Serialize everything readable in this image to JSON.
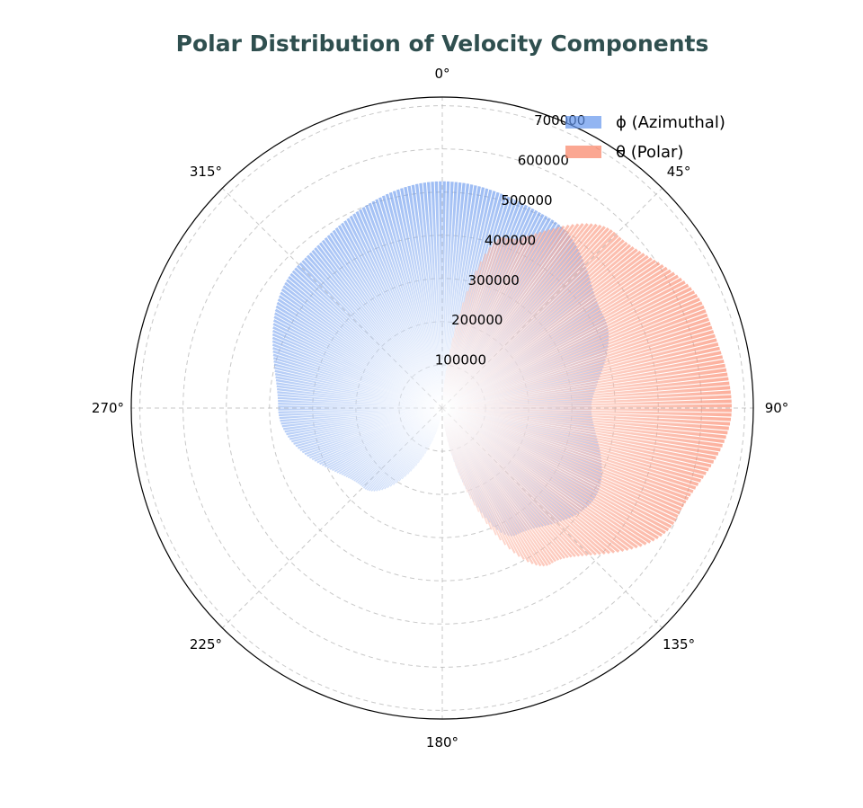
{
  "chart_data": {
    "type": "polar-bar",
    "title": "Polar Distribution of Velocity Components",
    "angular_ticks": [
      "0°",
      "45°",
      "90°",
      "135°",
      "180°",
      "225°",
      "270°",
      "315°"
    ],
    "radial_ticks": [
      100000,
      200000,
      300000,
      400000,
      500000,
      600000,
      700000
    ],
    "rlim": [
      0,
      720000
    ],
    "theta_zero": "top",
    "theta_direction": "clockwise",
    "grid": true,
    "legend": {
      "position": "top-right"
    },
    "series": [
      {
        "name": "ϕ (Azimuthal)",
        "color": "#6495ed",
        "center_angle_deg": 270,
        "angle_span_deg": 360,
        "max_value": 530000,
        "min_value": 0,
        "profile": [
          {
            "angle_deg": 0,
            "value": 345000
          },
          {
            "angle_deg": 30,
            "value": 410000
          },
          {
            "angle_deg": 60,
            "value": 340000
          },
          {
            "angle_deg": 90,
            "value": 0
          },
          {
            "angle_deg": 135,
            "value": 260000
          },
          {
            "angle_deg": 180,
            "value": 380000
          },
          {
            "angle_deg": 225,
            "value": 470000
          },
          {
            "angle_deg": 270,
            "value": 525000
          },
          {
            "angle_deg": 300,
            "value": 505000
          },
          {
            "angle_deg": 330,
            "value": 430000
          },
          {
            "angle_deg": 360,
            "value": 345000
          }
        ]
      },
      {
        "name": "θ (Polar)",
        "color": "#fa8264",
        "center_angle_deg": 90,
        "angle_span_deg": 180,
        "max_value": 670000,
        "min_value": 0,
        "profile": [
          {
            "angle_deg": 0,
            "value": 0
          },
          {
            "angle_deg": 20,
            "value": 420000
          },
          {
            "angle_deg": 45,
            "value": 570000
          },
          {
            "angle_deg": 70,
            "value": 650000
          },
          {
            "angle_deg": 90,
            "value": 670000
          },
          {
            "angle_deg": 115,
            "value": 600000
          },
          {
            "angle_deg": 145,
            "value": 440000
          },
          {
            "angle_deg": 180,
            "value": 0
          }
        ]
      }
    ]
  }
}
